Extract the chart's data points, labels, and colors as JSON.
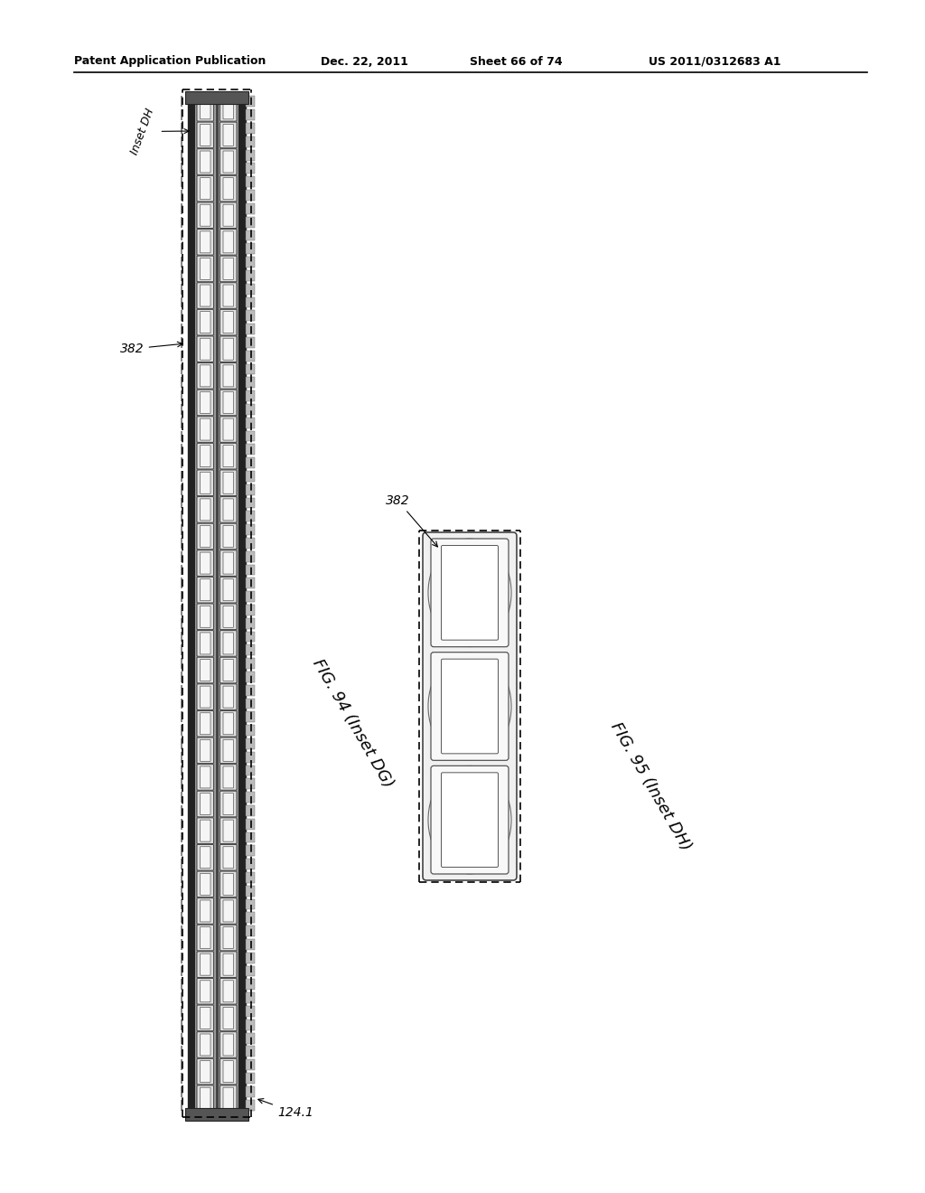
{
  "bg_color": "#ffffff",
  "header_text": "Patent Application Publication",
  "header_date": "Dec. 22, 2011",
  "header_sheet": "Sheet 66 of 74",
  "header_patent": "US 2011/0312683 A1",
  "fig94_label": "FIG. 94 (Inset DG)",
  "fig95_label": "FIG. 95 (Inset DH)",
  "label_382_fig94": "382",
  "label_382_fig95": "382",
  "label_inset_dh": "Inset DH",
  "label_124": "124.1"
}
